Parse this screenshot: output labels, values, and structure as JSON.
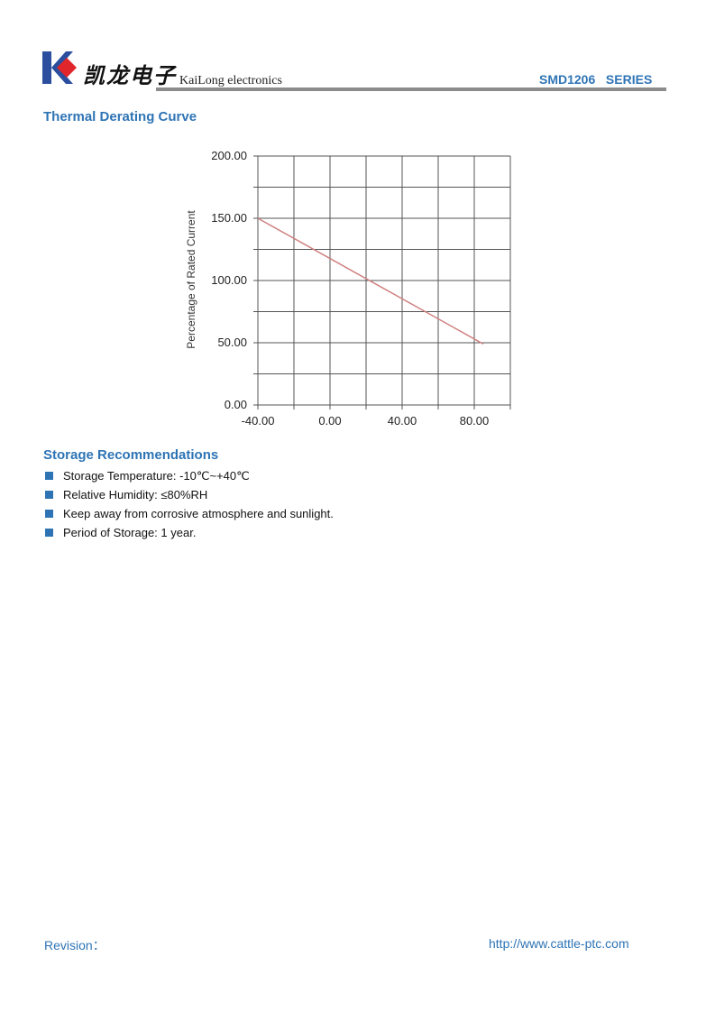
{
  "header": {
    "logo_cn": "凯龙电子",
    "logo_en": "KaiLong electronics",
    "series": "SMD1206   SERIES"
  },
  "sections": {
    "thermal_title": "Thermal Derating Curve",
    "storage_title": "Storage Recommendations"
  },
  "storage_items": [
    "Storage Temperature: -10℃~+40℃",
    "Relative Humidity: ≤80%RH",
    "Keep away from corrosive atmosphere and sunlight.",
    "Period of Storage: 1 year."
  ],
  "footer": {
    "revision": "Revision：",
    "url": "http://www.cattle-ptc.com"
  },
  "colors": {
    "accent": "#2e74b5",
    "line": "#d08080",
    "logo_blue": "#2b4f9e",
    "logo_red": "#e0262b"
  },
  "chart_data": {
    "type": "line",
    "title": "",
    "xlabel": "",
    "ylabel": "Percentage of Rated Current",
    "xlim": [
      -40,
      100
    ],
    "ylim": [
      0,
      200
    ],
    "grid": true,
    "xticks": [
      "-40.00",
      "0.00",
      "40.00",
      "80.00"
    ],
    "xtick_values": [
      -40,
      0,
      40,
      80
    ],
    "yticks": [
      "0.00",
      "50.00",
      "100.00",
      "150.00",
      "200.00"
    ],
    "ytick_values": [
      0,
      50,
      100,
      150,
      200
    ],
    "series": [
      {
        "x": [
          -40,
          85
        ],
        "y": [
          150,
          49
        ]
      }
    ]
  }
}
